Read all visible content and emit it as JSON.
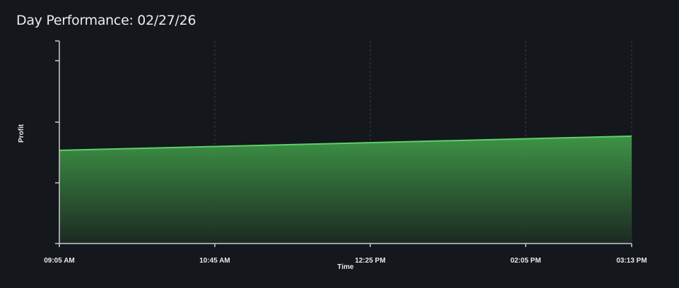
{
  "page": {
    "title": "Day Performance: 02/27/26"
  },
  "chart_data": {
    "type": "area",
    "title": "Day Performance: 02/27/26",
    "xlabel": "Time",
    "ylabel": "Profit",
    "x_tick_labels": [
      "09:05 AM",
      "10:45 AM",
      "12:25 PM",
      "02:05 PM",
      "03:13 PM"
    ],
    "y_tick_labels": [],
    "series": [
      {
        "x": [
          "09:05 AM",
          "03:13 PM"
        ],
        "values": [
          0.46,
          0.53
        ]
      }
    ],
    "ylim": [
      0,
      1
    ],
    "grid": "vertical-dashed",
    "legend": "none",
    "colors": {
      "background": "#14171c",
      "line": "#5fd068",
      "fill_top": "#3f9a48",
      "fill_bottom": "#1d2a22",
      "axis": "#c9ccd1",
      "grid": "#3a3f46",
      "text": "#e6e8eb"
    }
  }
}
